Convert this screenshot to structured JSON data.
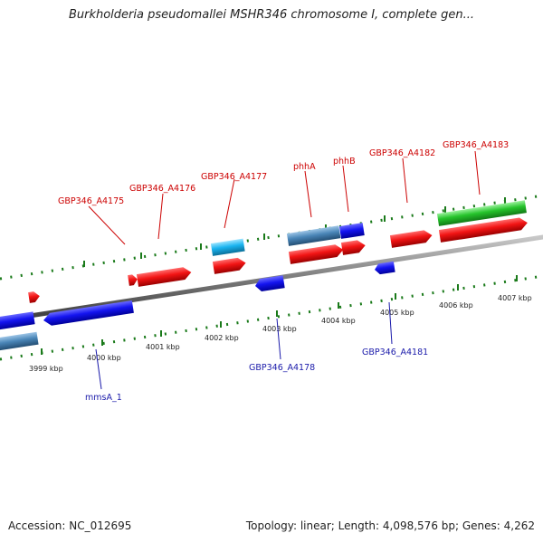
{
  "title": "Burkholderia pseudomallei MSHR346 chromosome I, complete gen...",
  "footer": {
    "accession": "Accession: NC_012695",
    "summary": "Topology: linear; Length: 4,098,576 bp; Genes: 4,262"
  },
  "colors": {
    "red": "#e81010",
    "blue": "#1010e0",
    "steel": "#4682b4",
    "cyan": "#19b5f0",
    "green": "#22c42a",
    "backbone": "#808080",
    "tick": "#1a7a1a",
    "label_red": "#cc0000",
    "label_blue": "#1a1aaa"
  },
  "ticks": [
    "3999 kbp",
    "4000 kbp",
    "4001 kbp",
    "4002 kbp",
    "4003 kbp",
    "4004 kbp",
    "4005 kbp",
    "4006 kbp",
    "4007 kbp"
  ],
  "labels_top": [
    "GBP346_A4175",
    "GBP346_A4176",
    "GBP346_A4177",
    "phhA",
    "phhB",
    "GBP346_A4182",
    "GBP346_A4183"
  ],
  "labels_bottom": [
    "mmsA_1",
    "GBP346_A4178",
    "GBP346_A4181"
  ]
}
